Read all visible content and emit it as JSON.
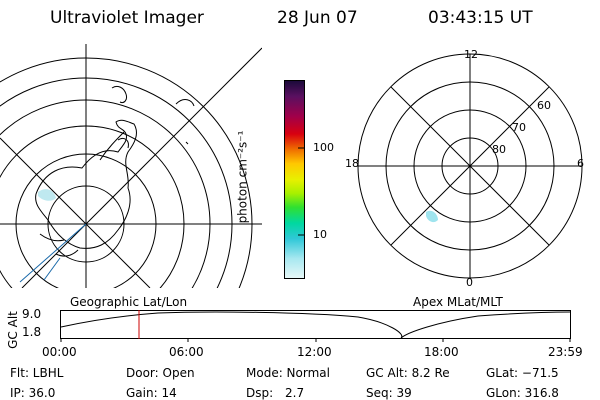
{
  "header": {
    "instrument": "Ultraviolet Imager",
    "date": "28 Jun 07",
    "time": "03:43:15 UT"
  },
  "colorbar": {
    "unit_label": "photon cm⁻²s⁻¹",
    "tick_labels": [
      "100",
      "10"
    ],
    "colors": [
      "#1a0a3a",
      "#5a1060",
      "#a0004a",
      "#d80010",
      "#f07000",
      "#ffc800",
      "#e8f000",
      "#a8f000",
      "#30e030",
      "#00d8a0",
      "#30c8d8",
      "#a8e8f0",
      "#e8f8f8"
    ]
  },
  "polar_plot": {
    "mlt_labels": {
      "top": "12",
      "bottom": "0",
      "left": "18",
      "right": "6"
    },
    "lat_labels": [
      "60",
      "70",
      "80"
    ]
  },
  "map_titles": {
    "left": "Geographic Lat/Lon",
    "right": "Apex MLat/MLT"
  },
  "altitude_plot": {
    "ylabel": "GC Alt",
    "yticks": [
      "9.0",
      "1.8"
    ],
    "xticks": [
      "00:00",
      "06:00",
      "12:00",
      "18:00",
      "23:59"
    ],
    "current_time_marker": "03:43"
  },
  "info": {
    "filter": "Flt: LBHL",
    "door": "Door: Open",
    "mode": "Mode: Normal",
    "gc_alt": "GC Alt: 8.2 Re",
    "glat": "GLat: −71.5",
    "ip": "IP: 36.0",
    "gain": "Gain: 14",
    "dsp_label": "Dsp:",
    "dsp_value": "2.7",
    "seq": "Seq: 39",
    "glon": "GLon: 316.8"
  },
  "colors": {
    "ink": "#000000",
    "coast": "#1a6aaa",
    "marker": "#cc0000",
    "emission": "#9fe4ee"
  }
}
